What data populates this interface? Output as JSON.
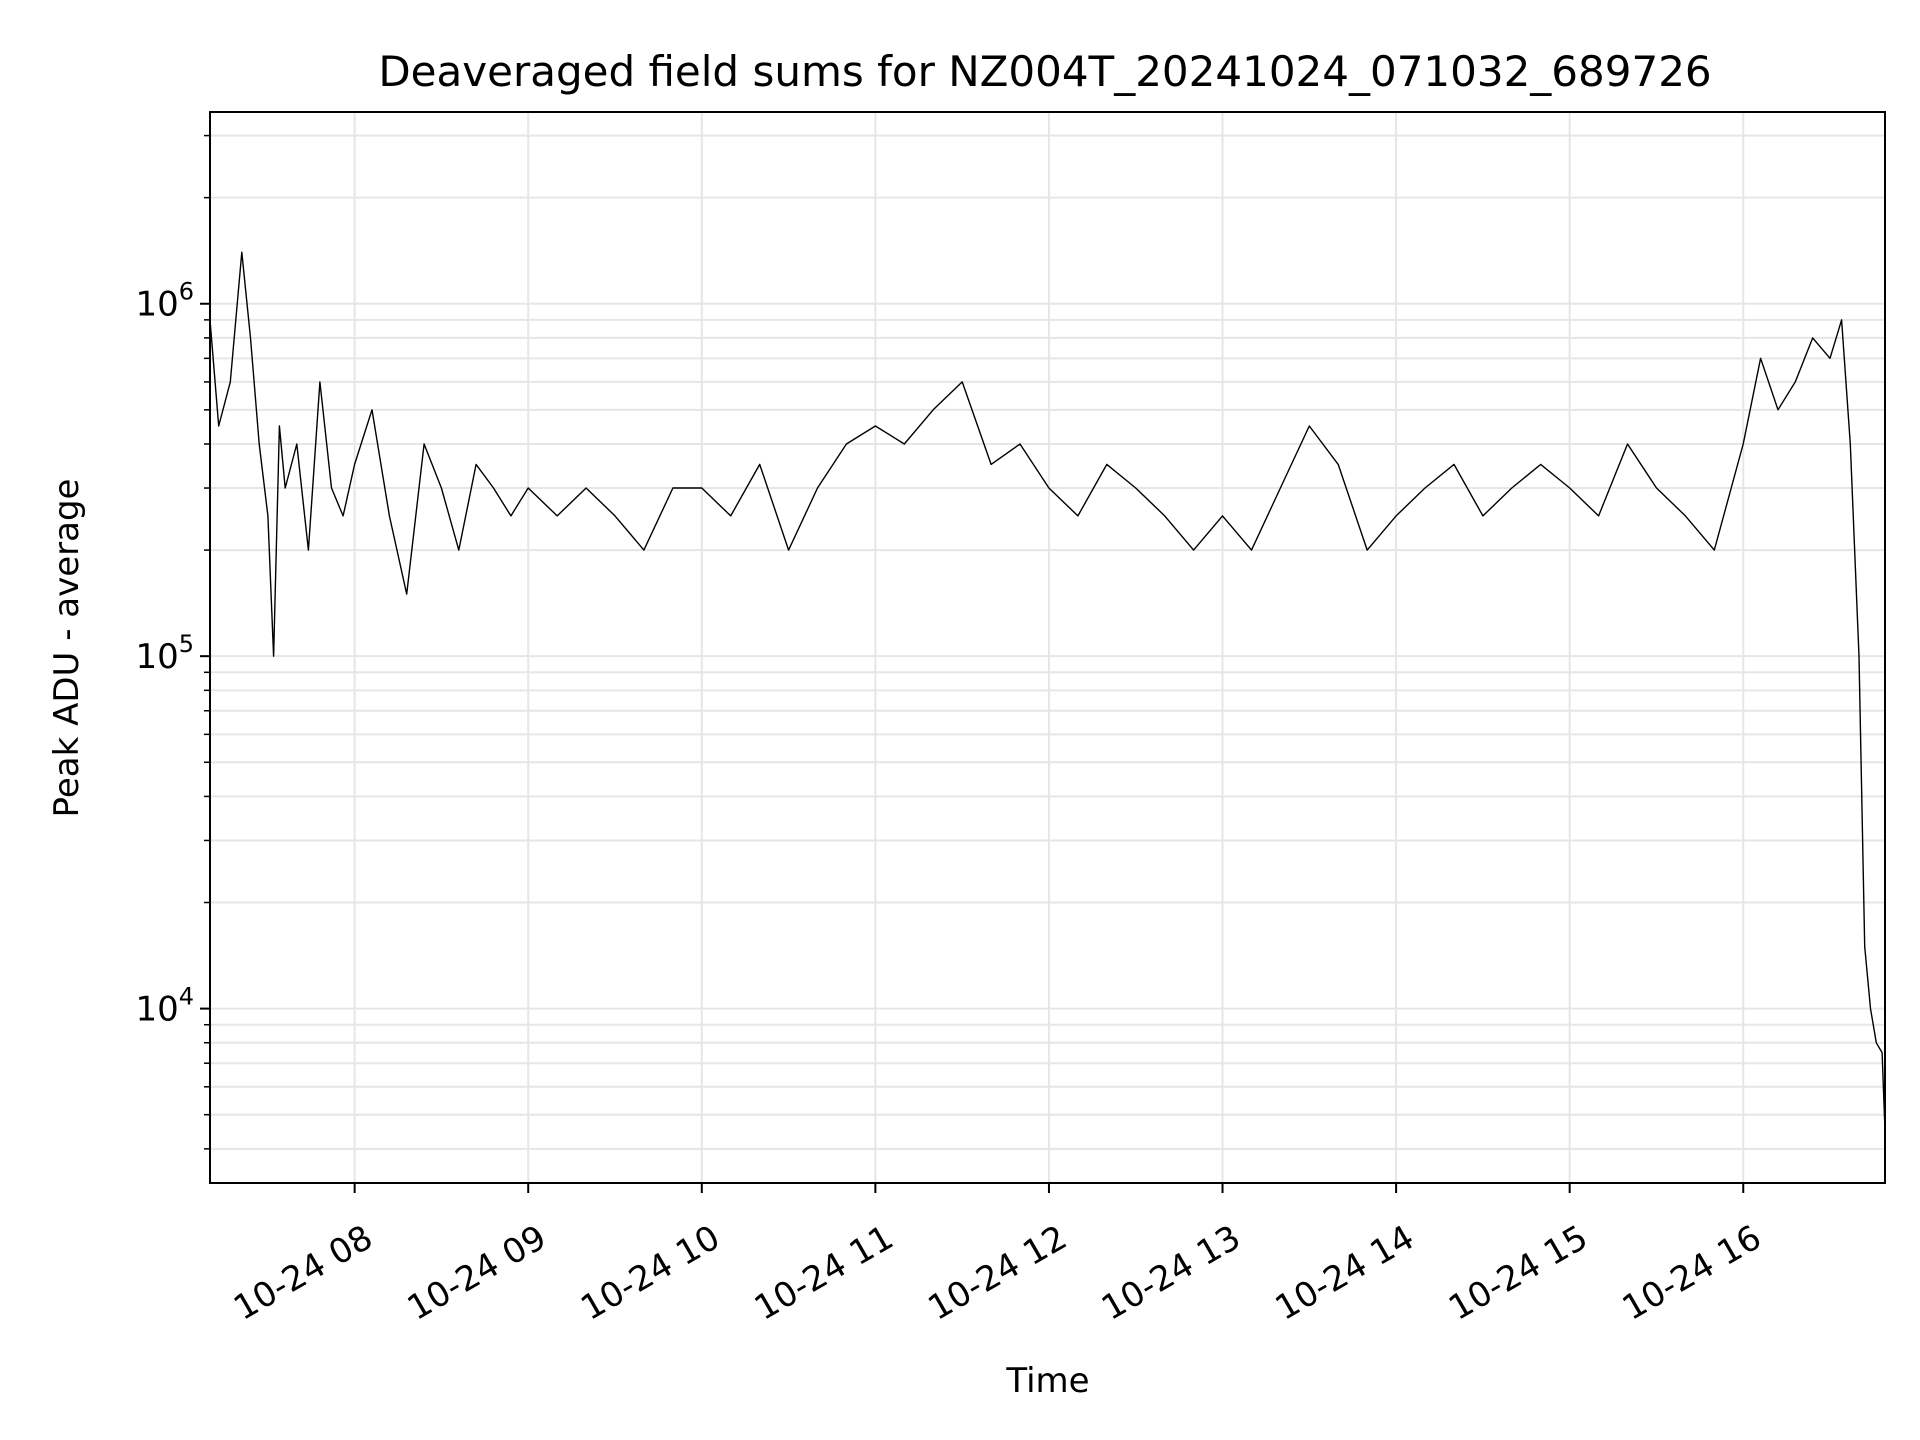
{
  "chart_data": {
    "type": "line",
    "title": "Deaveraged field sums for NZ004T_20241024_071032_689726",
    "xlabel": "Time",
    "ylabel": "Peak ADU - average",
    "yscale": "log",
    "xlim": [
      "2024-10-24 07:10",
      "2024-10-24 16:49"
    ],
    "ylim": [
      3200,
      3500000
    ],
    "grid": true,
    "x_ticks": [
      {
        "value": "2024-10-24 08:00",
        "label": "10-24 08"
      },
      {
        "value": "2024-10-24 09:00",
        "label": "10-24 09"
      },
      {
        "value": "2024-10-24 10:00",
        "label": "10-24 10"
      },
      {
        "value": "2024-10-24 11:00",
        "label": "10-24 11"
      },
      {
        "value": "2024-10-24 12:00",
        "label": "10-24 12"
      },
      {
        "value": "2024-10-24 13:00",
        "label": "10-24 13"
      },
      {
        "value": "2024-10-24 14:00",
        "label": "10-24 14"
      },
      {
        "value": "2024-10-24 15:00",
        "label": "10-24 15"
      },
      {
        "value": "2024-10-24 16:00",
        "label": "10-24 16"
      }
    ],
    "y_ticks": [
      {
        "value": 10000,
        "base": "10",
        "exp": "4"
      },
      {
        "value": 100000,
        "base": "10",
        "exp": "5"
      },
      {
        "value": 1000000,
        "base": "10",
        "exp": "6"
      }
    ],
    "line_color": "#000000",
    "grid_color": "#e6e6e6",
    "series": [
      {
        "x": [
          "2024-10-24 07:10",
          "2024-10-24 07:13",
          "2024-10-24 07:17",
          "2024-10-24 07:21",
          "2024-10-24 07:24",
          "2024-10-24 07:27",
          "2024-10-24 07:30",
          "2024-10-24 07:32",
          "2024-10-24 07:34",
          "2024-10-24 07:36",
          "2024-10-24 07:40",
          "2024-10-24 07:44",
          "2024-10-24 07:48",
          "2024-10-24 07:52",
          "2024-10-24 07:56",
          "2024-10-24 08:00",
          "2024-10-24 08:06",
          "2024-10-24 08:12",
          "2024-10-24 08:18",
          "2024-10-24 08:24",
          "2024-10-24 08:30",
          "2024-10-24 08:36",
          "2024-10-24 08:42",
          "2024-10-24 08:48",
          "2024-10-24 08:54",
          "2024-10-24 09:00",
          "2024-10-24 09:10",
          "2024-10-24 09:20",
          "2024-10-24 09:30",
          "2024-10-24 09:40",
          "2024-10-24 09:50",
          "2024-10-24 10:00",
          "2024-10-24 10:10",
          "2024-10-24 10:20",
          "2024-10-24 10:30",
          "2024-10-24 10:40",
          "2024-10-24 10:50",
          "2024-10-24 11:00",
          "2024-10-24 11:10",
          "2024-10-24 11:20",
          "2024-10-24 11:30",
          "2024-10-24 11:40",
          "2024-10-24 11:50",
          "2024-10-24 12:00",
          "2024-10-24 12:10",
          "2024-10-24 12:20",
          "2024-10-24 12:30",
          "2024-10-24 12:40",
          "2024-10-24 12:50",
          "2024-10-24 13:00",
          "2024-10-24 13:10",
          "2024-10-24 13:20",
          "2024-10-24 13:30",
          "2024-10-24 13:40",
          "2024-10-24 13:50",
          "2024-10-24 14:00",
          "2024-10-24 14:10",
          "2024-10-24 14:20",
          "2024-10-24 14:30",
          "2024-10-24 14:40",
          "2024-10-24 14:50",
          "2024-10-24 15:00",
          "2024-10-24 15:10",
          "2024-10-24 15:20",
          "2024-10-24 15:30",
          "2024-10-24 15:40",
          "2024-10-24 15:50",
          "2024-10-24 16:00",
          "2024-10-24 16:06",
          "2024-10-24 16:12",
          "2024-10-24 16:18",
          "2024-10-24 16:24",
          "2024-10-24 16:30",
          "2024-10-24 16:34",
          "2024-10-24 16:37",
          "2024-10-24 16:40",
          "2024-10-24 16:42",
          "2024-10-24 16:44",
          "2024-10-24 16:46",
          "2024-10-24 16:48",
          "2024-10-24 16:49"
        ],
        "y": [
          900000,
          450000,
          600000,
          1400000,
          800000,
          400000,
          250000,
          100000,
          450000,
          300000,
          400000,
          200000,
          600000,
          300000,
          250000,
          350000,
          500000,
          250000,
          150000,
          400000,
          300000,
          200000,
          350000,
          300000,
          250000,
          300000,
          250000,
          300000,
          250000,
          200000,
          300000,
          300000,
          250000,
          350000,
          200000,
          300000,
          400000,
          450000,
          400000,
          500000,
          600000,
          350000,
          400000,
          300000,
          250000,
          350000,
          300000,
          250000,
          200000,
          250000,
          200000,
          300000,
          450000,
          350000,
          200000,
          250000,
          300000,
          350000,
          250000,
          300000,
          350000,
          300000,
          250000,
          400000,
          300000,
          250000,
          200000,
          400000,
          700000,
          500000,
          600000,
          800000,
          700000,
          900000,
          400000,
          100000,
          15000,
          10000,
          8000,
          7500,
          4500
        ]
      }
    ]
  }
}
